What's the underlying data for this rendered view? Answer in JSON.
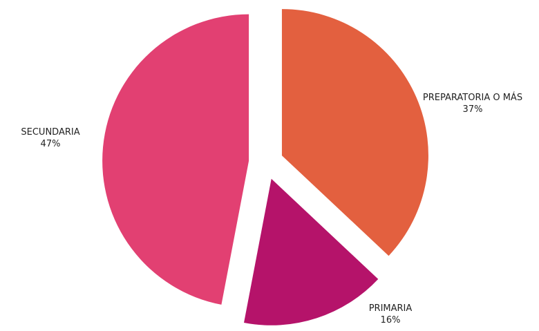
{
  "chart_data": {
    "type": "pie",
    "categories": [
      "PREPARATORIA O MÁS",
      "PRIMARIA",
      "SECUNDARIA"
    ],
    "values": [
      37,
      16,
      47
    ],
    "value_labels": [
      "37%",
      "16%",
      "47%"
    ],
    "colors": [
      "#E3603F",
      "#B5136A",
      "#E24072"
    ]
  }
}
